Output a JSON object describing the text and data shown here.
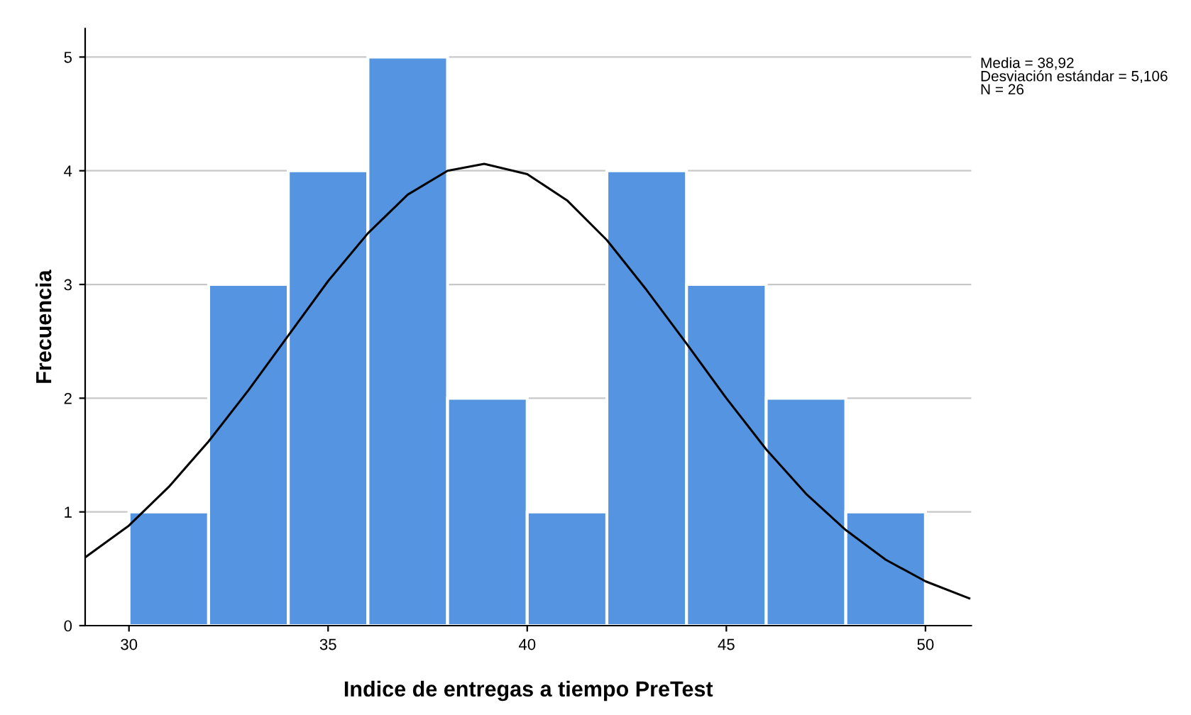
{
  "chart_data": {
    "type": "histogram",
    "xlabel": "Indice de entregas a tiempo PreTest",
    "ylabel": "Frecuencia",
    "bins": [
      30,
      32,
      34,
      36,
      38,
      40,
      42,
      44,
      46,
      48,
      50
    ],
    "values": [
      1,
      3,
      4,
      5,
      2,
      1,
      4,
      3,
      2,
      1
    ],
    "color": "#5594e0",
    "series": [
      {
        "type": "line",
        "color": "#000000",
        "x": [
          28.9,
          30,
          31,
          32,
          33,
          34,
          35,
          36,
          37,
          38,
          38.92,
          40,
          41,
          42,
          43,
          44,
          45,
          46,
          47,
          48,
          49,
          50,
          51.1
        ],
        "values": [
          0.6,
          0.88,
          1.22,
          1.62,
          2.07,
          2.55,
          3.03,
          3.45,
          3.79,
          4.0,
          4.06,
          3.97,
          3.74,
          3.39,
          2.95,
          2.48,
          2.0,
          1.55,
          1.16,
          0.84,
          0.58,
          0.39,
          0.24
        ]
      }
    ],
    "xlim": [
      28.9,
      51.15
    ],
    "ylim": [
      0,
      5.25
    ],
    "xticks": [
      30,
      35,
      40,
      45,
      50
    ],
    "yticks": [
      0,
      1,
      2,
      3,
      4,
      5
    ],
    "grid": "y",
    "annotations": [
      "Media = 38,92",
      "Desviación estándar = 5,106",
      "N = 26"
    ]
  }
}
